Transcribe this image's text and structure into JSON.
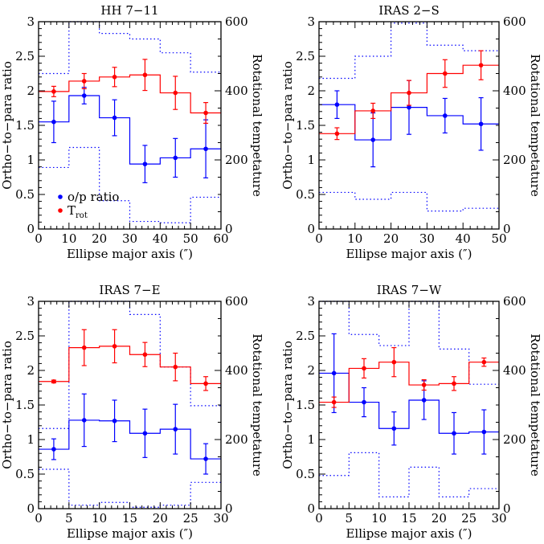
{
  "colors": {
    "op_ratio": "#0000ff",
    "trot": "#ff0000",
    "axes": "#000000"
  },
  "legend": {
    "op_label": "o/p ratio",
    "trot_main": "T",
    "trot_sub": "rot",
    "placement": "lower-left of first panel"
  },
  "chart_data": [
    {
      "type": "line",
      "title": "HH 7−11",
      "xlabel": "Ellipse major axis (″)",
      "ylabel": "Ortho−to−para ratio",
      "y2label": "Rotational tempetature",
      "xlim": [
        0,
        60
      ],
      "ylim": [
        0,
        3
      ],
      "y2lim": [
        0,
        600
      ],
      "xticks": [
        0,
        10,
        20,
        30,
        40,
        50,
        60
      ],
      "yticks": [
        0,
        0.5,
        1,
        1.5,
        2,
        2.5,
        3
      ],
      "y2ticks": [
        0,
        200,
        400,
        600
      ],
      "x": [
        5,
        15,
        25,
        35,
        45,
        55
      ],
      "bin_edges": [
        0,
        10,
        20,
        30,
        40,
        50,
        60
      ],
      "series": [
        {
          "name": "o/p ratio",
          "axis": "left",
          "values": [
            1.55,
            1.93,
            1.61,
            0.94,
            1.03,
            1.16
          ],
          "err": [
            0.3,
            0.12,
            0.26,
            0.27,
            0.28,
            0.42
          ],
          "upper": [
            2.25,
            3.0,
            2.83,
            2.75,
            2.55,
            2.27
          ],
          "lower": [
            0.89,
            1.18,
            0.41,
            0.11,
            0.09,
            0.46
          ]
        },
        {
          "name": "T_rot",
          "axis": "right",
          "values": [
            398,
            428,
            440,
            446,
            394,
            336
          ],
          "err": [
            15,
            22,
            28,
            45,
            48,
            30
          ]
        }
      ],
      "show_legend": true
    },
    {
      "type": "line",
      "title": "IRAS 2−S",
      "xlabel": "Ellipse major axis (″)",
      "ylabel": "Ortho−to−para ratio",
      "y2label": "Rotational tempetature",
      "xlim": [
        0,
        50
      ],
      "ylim": [
        0,
        3
      ],
      "y2lim": [
        0,
        600
      ],
      "xticks": [
        0,
        10,
        20,
        30,
        40,
        50
      ],
      "yticks": [
        0,
        0.5,
        1,
        1.5,
        2,
        2.5,
        3
      ],
      "y2ticks": [
        0,
        200,
        400,
        600
      ],
      "x": [
        5,
        15,
        25,
        35,
        45
      ],
      "bin_edges": [
        0,
        10,
        20,
        30,
        40,
        50
      ],
      "series": [
        {
          "name": "o/p ratio",
          "axis": "left",
          "values": [
            1.8,
            1.29,
            1.76,
            1.64,
            1.52
          ],
          "err": [
            0.2,
            0.39,
            0.39,
            0.25,
            0.38
          ],
          "upper": [
            2.18,
            2.5,
            2.98,
            2.66,
            2.58
          ],
          "lower": [
            0.53,
            0.43,
            0.53,
            0.26,
            0.3
          ]
        },
        {
          "name": "T_rot",
          "axis": "right",
          "values": [
            276,
            342,
            394,
            450,
            474
          ],
          "err": [
            17,
            22,
            36,
            40,
            42
          ]
        }
      ],
      "show_legend": false
    },
    {
      "type": "line",
      "title": "IRAS 7−E",
      "xlabel": "Ellipse major axis (″)",
      "ylabel": "Ortho−to−para ratio",
      "y2label": "Rotational tempetature",
      "xlim": [
        0,
        30
      ],
      "ylim": [
        0,
        3
      ],
      "y2lim": [
        0,
        600
      ],
      "xticks": [
        0,
        5,
        10,
        15,
        20,
        25,
        30
      ],
      "yticks": [
        0,
        0.5,
        1,
        1.5,
        2,
        2.5,
        3
      ],
      "y2ticks": [
        0,
        200,
        400,
        600
      ],
      "x": [
        2.5,
        7.5,
        12.5,
        17.5,
        22.5,
        27.5
      ],
      "bin_edges": [
        0,
        5,
        10,
        15,
        20,
        25,
        30
      ],
      "series": [
        {
          "name": "o/p ratio",
          "axis": "left",
          "values": [
            0.86,
            1.28,
            1.27,
            1.09,
            1.15,
            0.72
          ],
          "err": [
            0.15,
            0.38,
            0.3,
            0.35,
            0.36,
            0.22
          ],
          "upper": [
            1.16,
            3.0,
            3.0,
            2.81,
            2.05,
            1.49
          ],
          "lower": [
            0.57,
            0.05,
            0.09,
            0.02,
            0.05,
            0.38
          ]
        },
        {
          "name": "T_rot",
          "axis": "right",
          "values": [
            368,
            466,
            470,
            446,
            410,
            362
          ],
          "err": [
            4,
            52,
            48,
            35,
            40,
            20
          ]
        }
      ],
      "show_legend": false
    },
    {
      "type": "line",
      "title": "IRAS 7−W",
      "xlabel": "Ellipse major axis (″)",
      "ylabel": "Ortho−to−para ratio",
      "y2label": "Rotational tempetature",
      "xlim": [
        0,
        30
      ],
      "ylim": [
        0,
        3
      ],
      "y2lim": [
        0,
        600
      ],
      "xticks": [
        0,
        5,
        10,
        15,
        20,
        25,
        30
      ],
      "yticks": [
        0,
        0.5,
        1,
        1.5,
        2,
        2.5,
        3
      ],
      "y2ticks": [
        0,
        200,
        400,
        600
      ],
      "x": [
        2.5,
        7.5,
        12.5,
        17.5,
        22.5,
        27.5
      ],
      "bin_edges": [
        0,
        5,
        10,
        15,
        20,
        25,
        30
      ],
      "series": [
        {
          "name": "o/p ratio",
          "axis": "left",
          "values": [
            1.96,
            1.54,
            1.16,
            1.57,
            1.09,
            1.11
          ],
          "err": [
            0.57,
            0.21,
            0.24,
            0.28,
            0.3,
            0.32
          ],
          "upper": [
            3.0,
            2.52,
            2.36,
            3.0,
            2.31,
            1.8
          ],
          "lower": [
            0.48,
            0.81,
            0.17,
            0.6,
            0.17,
            0.29
          ]
        },
        {
          "name": "T_rot",
          "axis": "right",
          "values": [
            308,
            406,
            424,
            358,
            362,
            424
          ],
          "err": [
            15,
            28,
            42,
            15,
            20,
            12
          ]
        }
      ],
      "show_legend": false
    }
  ]
}
